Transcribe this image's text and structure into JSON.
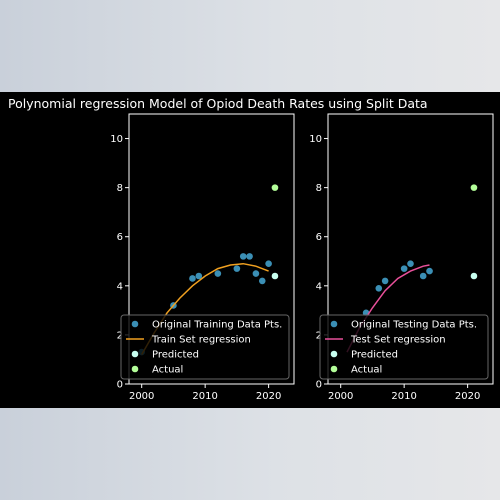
{
  "figure_title": "Polynomial regression Model of Opiod Death Rates using Split Data",
  "chart_data": [
    {
      "type": "scatter",
      "name": "train-panel",
      "xlim": [
        1998,
        2024
      ],
      "ylim": [
        0,
        11
      ],
      "xticks": [
        2000,
        2010,
        2020
      ],
      "yticks": [
        0,
        2,
        4,
        6,
        8,
        10
      ],
      "points": {
        "name": "Original Training Data Pts.",
        "color": "#3b8fb5",
        "x": [
          2000,
          2005,
          2008,
          2009,
          2012,
          2015,
          2016,
          2017,
          2018,
          2019,
          2020
        ],
        "y": [
          1.3,
          3.2,
          4.3,
          4.4,
          4.5,
          4.7,
          5.2,
          5.2,
          4.5,
          4.2,
          4.9
        ]
      },
      "regression": {
        "name": "Train Set regression",
        "color": "#f0a020",
        "x": [
          2000,
          2002,
          2004,
          2006,
          2008,
          2010,
          2012,
          2014,
          2016,
          2018,
          2020
        ],
        "y": [
          1.2,
          2.1,
          2.9,
          3.5,
          4.0,
          4.4,
          4.7,
          4.85,
          4.9,
          4.8,
          4.6
        ]
      },
      "predicted": {
        "name": "Predicted",
        "color": "#c8fff0",
        "x": [
          2021
        ],
        "y": [
          4.4
        ]
      },
      "actual": {
        "name": "Actual",
        "color": "#b4ff9a",
        "x": [
          2021
        ],
        "y": [
          8.0
        ]
      },
      "legend": "lower-left"
    },
    {
      "type": "scatter",
      "name": "test-panel",
      "xlim": [
        1998,
        2024
      ],
      "ylim": [
        0,
        11
      ],
      "xticks": [
        2000,
        2010,
        2020
      ],
      "yticks": [
        0,
        2,
        4,
        6,
        8,
        10
      ],
      "points": {
        "name": "Original Testing Data Pts.",
        "color": "#3b8fb5",
        "x": [
          2004,
          2006,
          2007,
          2010,
          2011,
          2013,
          2014
        ],
        "y": [
          2.9,
          3.9,
          4.2,
          4.7,
          4.9,
          4.4,
          4.6
        ]
      },
      "regression": {
        "name": "Test Set regression",
        "color": "#e8509a",
        "x": [
          2001,
          2003,
          2005,
          2007,
          2009,
          2011,
          2013,
          2014
        ],
        "y": [
          1.3,
          2.3,
          3.1,
          3.8,
          4.3,
          4.6,
          4.8,
          4.85
        ]
      },
      "predicted": {
        "name": "Predicted",
        "color": "#c8fff0",
        "x": [
          2021
        ],
        "y": [
          4.4
        ]
      },
      "actual": {
        "name": "Actual",
        "color": "#b4ff9a",
        "x": [
          2021
        ],
        "y": [
          8.0
        ]
      },
      "legend": "lower-left"
    }
  ]
}
